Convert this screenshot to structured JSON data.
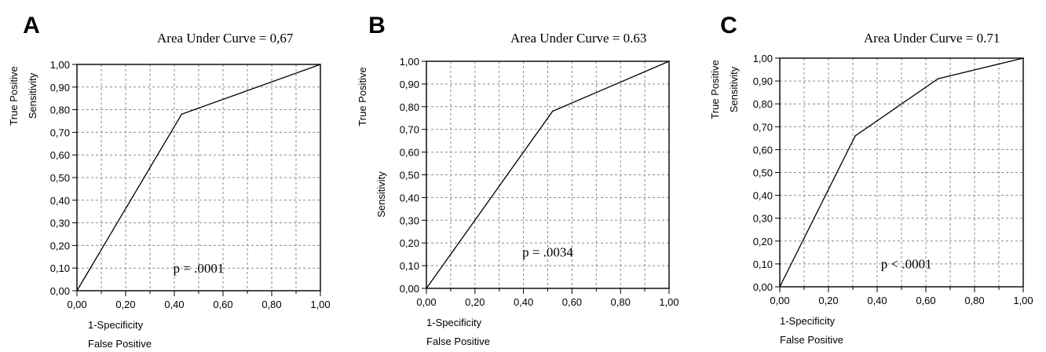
{
  "chart_data": [
    {
      "type": "line",
      "panel_label": "A",
      "title": "Area Under Curve = 0,67",
      "xlabel": [
        "1-Specificity",
        "False Positive"
      ],
      "ylabel": [
        "True Positive",
        "Sensitivity"
      ],
      "xlim": [
        0,
        1
      ],
      "ylim": [
        0,
        1
      ],
      "grid": true,
      "xticks": [
        "0,00",
        "0,20",
        "0,40",
        "0,60",
        "0,80",
        "1,00"
      ],
      "yticks": [
        "0,00",
        "0,10",
        "0,20",
        "0,30",
        "0,40",
        "0,50",
        "0,60",
        "0,70",
        "0,80",
        "0,90",
        "1,00"
      ],
      "series": [
        {
          "x": [
            0,
            0.43,
            1.0
          ],
          "y": [
            0,
            0.78,
            1.0
          ]
        }
      ],
      "annotation": {
        "text": "p = .0001",
        "x": 0.5,
        "y": 0.08
      }
    },
    {
      "type": "line",
      "panel_label": "B",
      "title": "Area Under Curve = 0.63",
      "xlabel": [
        "1-Specificity",
        "False Positive"
      ],
      "ylabel": [
        "True Positive",
        "Sensitivity"
      ],
      "xlim": [
        0,
        1
      ],
      "ylim": [
        0,
        1
      ],
      "grid": true,
      "xticks": [
        "0,00",
        "0,20",
        "0,40",
        "0,60",
        "0,80",
        "1,00"
      ],
      "yticks": [
        "0,00",
        "0,10",
        "0,20",
        "0,30",
        "0,40",
        "0,50",
        "0,60",
        "0,70",
        "0,80",
        "0,90",
        "1,00"
      ],
      "series": [
        {
          "x": [
            0,
            0.52,
            1.0
          ],
          "y": [
            0,
            0.78,
            1.0
          ]
        }
      ],
      "annotation": {
        "text": "p = .0034",
        "x": 0.5,
        "y": 0.14
      }
    },
    {
      "type": "line",
      "panel_label": "C",
      "title": "Area Under Curve = 0.71",
      "xlabel": [
        "1-Specificity",
        "False Positive"
      ],
      "ylabel": [
        "True Positive",
        "Sensitivity"
      ],
      "xlim": [
        0,
        1
      ],
      "ylim": [
        0,
        1
      ],
      "grid": true,
      "xticks": [
        "0,00",
        "0,20",
        "0,40",
        "0,60",
        "0,80",
        "1,00"
      ],
      "yticks": [
        "0,00",
        "0,10",
        "0,20",
        "0,30",
        "0,40",
        "0,50",
        "0,60",
        "0,70",
        "0,80",
        "0,90",
        "1,00"
      ],
      "series": [
        {
          "x": [
            0,
            0.31,
            0.65,
            1.0
          ],
          "y": [
            0,
            0.66,
            0.91,
            1.0
          ]
        }
      ],
      "annotation": {
        "text": "p < .0001",
        "x": 0.52,
        "y": 0.08
      }
    }
  ]
}
